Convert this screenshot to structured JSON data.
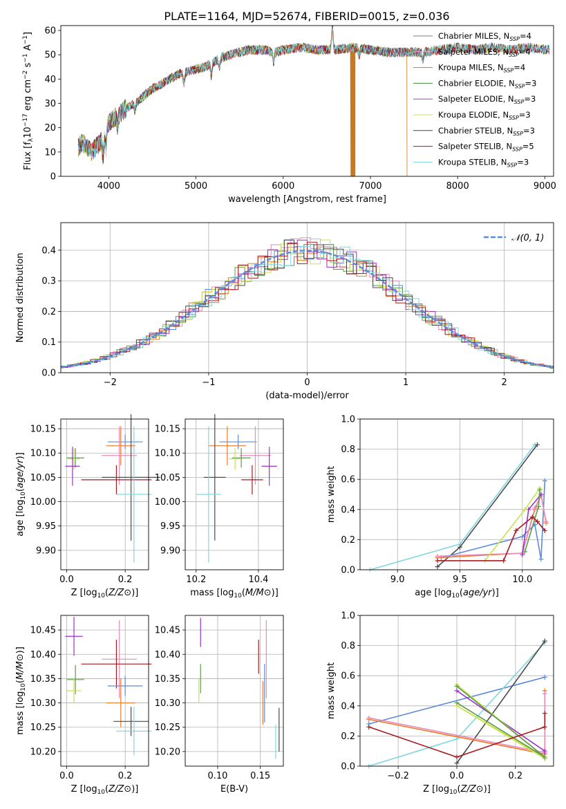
{
  "title": "PLATE=1164, MJD=52674, FIBERID=0015, z=0.036",
  "colors": {
    "Chabrier MILES": "#7b7b7b",
    "Salpeter MILES": "#e8a6cf",
    "Kroupa MILES": "#c8781e",
    "Chabrier ELODIE": "#3c8a3c",
    "Salpeter ELODIE": "#9a3ec8",
    "Kroupa ELODIE": "#d6e35a",
    "Chabrier STELIB": "#444444",
    "Salpeter STELIB": "#a81818",
    "Kroupa STELIB": "#7fd6df",
    "blue": "#5b8ad8",
    "orange": "#ec7a2a",
    "pink": "#e88ab8",
    "green": "#5e9a4a",
    "purple": "#9a30c8",
    "lime": "#c9e24e",
    "dark": "#4a4a4a",
    "red": "#a8191c",
    "cyan": "#7fd6df"
  },
  "chart_data": [
    {
      "id": "spectrum",
      "type": "line",
      "title": "PLATE=1164, MJD=52674, FIBERID=0015, z=0.036",
      "xlabel": "wavelength [Angstrom, rest frame]",
      "ylabel": "Flux [f_λ10^-17 erg cm^-2 s^-1 A^-1]",
      "xlim": [
        3450,
        9100
      ],
      "ylim": [
        0,
        62
      ],
      "xticks": [
        4000,
        5000,
        6000,
        7000,
        8000,
        9000
      ],
      "yticks": [
        0,
        10,
        20,
        30,
        40,
        50,
        60
      ],
      "continuum": {
        "x": [
          3650,
          3700,
          3800,
          3900,
          3950,
          4000,
          4100,
          4200,
          4300,
          4400,
          4500,
          4600,
          4700,
          4800,
          4900,
          5000,
          5100,
          5200,
          5300,
          5400,
          5500,
          5600,
          5700,
          5800,
          5900,
          6000,
          6200,
          6400,
          6600,
          6800,
          7000,
          7200,
          7400,
          7600,
          7800,
          8000,
          8200,
          8400,
          8600,
          8800,
          9050
        ],
        "y": [
          12,
          14,
          10,
          14,
          17,
          22,
          25,
          28,
          30,
          33,
          36,
          38,
          40,
          42,
          43,
          44,
          45,
          47,
          49,
          50,
          51,
          52,
          52,
          52,
          51,
          52,
          53,
          52,
          52,
          53,
          52,
          51,
          51,
          51,
          52,
          53,
          52,
          53,
          52,
          53,
          52
        ]
      },
      "series": [
        {
          "name": "Chabrier MILES",
          "n_ssp": "4"
        },
        {
          "name": "Salpeter MILES",
          "n_ssp": "4"
        },
        {
          "name": "Kroupa MILES",
          "n_ssp": "4"
        },
        {
          "name": "Chabrier ELODIE",
          "n_ssp": "3"
        },
        {
          "name": "Salpeter ELODIE",
          "n_ssp": "3"
        },
        {
          "name": "Kroupa ELODIE",
          "n_ssp": "3"
        },
        {
          "name": "Chabrier STELIB",
          "n_ssp": "3"
        },
        {
          "name": "Salpeter STELIB",
          "n_ssp": "5"
        },
        {
          "name": "Kroupa STELIB",
          "n_ssp": "3"
        }
      ],
      "dropouts": [
        {
          "series": "Kroupa MILES",
          "x": 6800
        },
        {
          "series": "Kroupa MILES",
          "x": 7420
        }
      ]
    },
    {
      "id": "residuals",
      "type": "line",
      "xlabel": "(data-model)/error",
      "ylabel": "Normed distribution",
      "xlim": [
        -2.5,
        2.5
      ],
      "ylim": [
        0,
        0.49
      ],
      "xticks": [
        -2,
        -1,
        0,
        1,
        2
      ],
      "yticks": [
        0.0,
        0.1,
        0.2,
        0.3,
        0.4
      ],
      "gaussian": {
        "label": "𝒩(0, 1)",
        "mean": 0,
        "sigma": 1
      },
      "bin_width": 0.1
    },
    {
      "id": "age-vs-Z",
      "type": "scatter",
      "xlabel": "Z [log10(Z/Z⊙)]",
      "ylabel": "age  [log10(age/yr)]",
      "xlim": [
        -0.02,
        0.28
      ],
      "ylim": [
        9.86,
        10.17
      ],
      "xticks": [
        0.0,
        0.2
      ],
      "yticks": [
        9.9,
        9.95,
        10.0,
        10.05,
        10.1,
        10.15
      ],
      "points": [
        {
          "color": "blue",
          "x": 0.2,
          "y": 10.123,
          "xerr": 0.06,
          "yerr": 0.015
        },
        {
          "color": "orange",
          "x": 0.185,
          "y": 10.115,
          "xerr": 0.05,
          "yerr": 0.04
        },
        {
          "color": "pink",
          "x": 0.18,
          "y": 10.095,
          "xerr": 0.06,
          "yerr": 0.06
        },
        {
          "color": "green",
          "x": 0.03,
          "y": 10.09,
          "xerr": 0.03,
          "yerr": 0.02
        },
        {
          "color": "lime",
          "x": 0.025,
          "y": 10.088,
          "xerr": 0.02,
          "yerr": 0.022
        },
        {
          "color": "purple",
          "x": 0.02,
          "y": 10.073,
          "xerr": 0.025,
          "yerr": 0.04
        },
        {
          "color": "red",
          "x": 0.17,
          "y": 10.045,
          "xerr": 0.12,
          "yerr": 0.03
        },
        {
          "color": "dark",
          "x": 0.22,
          "y": 10.05,
          "xerr": 0.1,
          "yerr": 0.13
        },
        {
          "color": "cyan",
          "x": 0.23,
          "y": 10.015,
          "xerr": 0.06,
          "yerr": 0.14
        }
      ]
    },
    {
      "id": "age-vs-mass",
      "type": "scatter",
      "xlabel": "mass [log10(M/M⊙)]",
      "ylabel": "",
      "xlim": [
        10.165,
        10.48
      ],
      "ylim": [
        9.86,
        10.17
      ],
      "xticks": [
        10.2,
        10.4
      ],
      "yticks": [
        9.9,
        9.95,
        10.0,
        10.05,
        10.1,
        10.15
      ],
      "points": [
        {
          "color": "blue",
          "x": 10.335,
          "y": 10.123,
          "xerr": 0.06,
          "yerr": 0.015
        },
        {
          "color": "orange",
          "x": 10.3,
          "y": 10.115,
          "xerr": 0.06,
          "yerr": 0.04
        },
        {
          "color": "pink",
          "x": 10.39,
          "y": 10.095,
          "xerr": 0.05,
          "yerr": 0.06
        },
        {
          "color": "green",
          "x": 10.345,
          "y": 10.09,
          "xerr": 0.03,
          "yerr": 0.02
        },
        {
          "color": "lime",
          "x": 10.325,
          "y": 10.088,
          "xerr": 0.02,
          "yerr": 0.022
        },
        {
          "color": "purple",
          "x": 10.435,
          "y": 10.073,
          "xerr": 0.025,
          "yerr": 0.04
        },
        {
          "color": "red",
          "x": 10.38,
          "y": 10.045,
          "xerr": 0.035,
          "yerr": 0.03
        },
        {
          "color": "dark",
          "x": 10.26,
          "y": 10.05,
          "xerr": 0.035,
          "yerr": 0.13
        },
        {
          "color": "cyan",
          "x": 10.24,
          "y": 10.015,
          "xerr": 0.04,
          "yerr": 0.14
        }
      ]
    },
    {
      "id": "mass-weight-vs-age",
      "type": "line",
      "xlabel": "age  [log10(age/yr)]",
      "ylabel": "mass weight",
      "xlim": [
        8.7,
        10.25
      ],
      "ylim": [
        0,
        1.0
      ],
      "xticks": [
        9.0,
        9.5,
        10.0
      ],
      "yticks": [
        0.0,
        0.2,
        0.4,
        0.6,
        0.8,
        1.0
      ],
      "series": [
        {
          "color": "cyan",
          "x": [
            8.78,
            9.5,
            10.1
          ],
          "y": [
            0.0,
            0.17,
            0.83
          ]
        },
        {
          "color": "dark",
          "x": [
            9.32,
            9.5,
            10.12
          ],
          "y": [
            0.02,
            0.15,
            0.83
          ]
        },
        {
          "color": "blue",
          "x": [
            9.35,
            10.0,
            10.1,
            10.15,
            10.18
          ],
          "y": [
            0.08,
            0.22,
            0.3,
            0.07,
            0.59
          ]
        },
        {
          "color": "orange",
          "x": [
            9.32,
            10.0,
            10.1,
            10.15,
            10.19
          ],
          "y": [
            0.08,
            0.11,
            0.4,
            0.5,
            0.31
          ]
        },
        {
          "color": "pink",
          "x": [
            9.32,
            10.0,
            10.1,
            10.15,
            10.19
          ],
          "y": [
            0.09,
            0.11,
            0.41,
            0.49,
            0.32
          ]
        },
        {
          "color": "purple",
          "x": [
            10.0,
            10.05,
            10.15
          ],
          "y": [
            0.1,
            0.4,
            0.5
          ]
        },
        {
          "color": "lime",
          "x": [
            9.7,
            10.02,
            10.14
          ],
          "y": [
            0.06,
            0.4,
            0.54
          ]
        },
        {
          "color": "green",
          "x": [
            10.02,
            10.13,
            10.14
          ],
          "y": [
            0.12,
            0.42,
            0.53
          ]
        },
        {
          "color": "red",
          "x": [
            9.32,
            9.85,
            9.95,
            10.08,
            10.12,
            10.18
          ],
          "y": [
            0.06,
            0.06,
            0.26,
            0.35,
            0.32,
            0.26
          ]
        }
      ]
    },
    {
      "id": "mass-vs-Z",
      "type": "scatter",
      "xlabel": "Z [log10(Z/Z⊙)]",
      "ylabel": "mass [log10(M/M⊙)]",
      "xlim": [
        -0.02,
        0.28
      ],
      "ylim": [
        10.17,
        10.48
      ],
      "xticks": [
        0.0,
        0.2
      ],
      "yticks": [
        10.2,
        10.25,
        10.3,
        10.35,
        10.4,
        10.45
      ],
      "points": [
        {
          "color": "purple",
          "x": 0.025,
          "y": 10.437,
          "xerr": 0.03,
          "yerr": 0.04
        },
        {
          "color": "pink",
          "x": 0.18,
          "y": 10.39,
          "xerr": 0.06,
          "yerr": 0.08
        },
        {
          "color": "red",
          "x": 0.17,
          "y": 10.38,
          "xerr": 0.12,
          "yerr": 0.05
        },
        {
          "color": "green",
          "x": 0.03,
          "y": 10.348,
          "xerr": 0.03,
          "yerr": 0.03
        },
        {
          "color": "blue",
          "x": 0.2,
          "y": 10.335,
          "xerr": 0.06,
          "yerr": 0.02
        },
        {
          "color": "lime",
          "x": 0.025,
          "y": 10.325,
          "xerr": 0.025,
          "yerr": 0.025
        },
        {
          "color": "orange",
          "x": 0.185,
          "y": 10.3,
          "xerr": 0.05,
          "yerr": 0.05
        },
        {
          "color": "dark",
          "x": 0.22,
          "y": 10.262,
          "xerr": 0.06,
          "yerr": 0.03
        },
        {
          "color": "cyan",
          "x": 0.23,
          "y": 10.242,
          "xerr": 0.06,
          "yerr": 0.05
        }
      ]
    },
    {
      "id": "mass-vs-EBV",
      "type": "scatter",
      "xlabel": "E(B-V)",
      "ylabel": "",
      "xlim": [
        0.062,
        0.177
      ],
      "ylim": [
        10.17,
        10.48
      ],
      "xticks": [
        0.1,
        0.15
      ],
      "yticks": [
        10.2,
        10.25,
        10.3,
        10.35,
        10.4,
        10.45
      ],
      "points": [
        {
          "color": "purple",
          "x": 0.08,
          "y": 10.445,
          "xerr": 0,
          "yerr": 0.03
        },
        {
          "color": "pink",
          "x": 0.157,
          "y": 10.39,
          "xerr": 0,
          "yerr": 0.08
        },
        {
          "color": "red",
          "x": 0.148,
          "y": 10.395,
          "xerr": 0,
          "yerr": 0.035
        },
        {
          "color": "green",
          "x": 0.08,
          "y": 10.35,
          "xerr": 0,
          "yerr": 0.03
        },
        {
          "color": "lime",
          "x": 0.078,
          "y": 10.325,
          "xerr": 0,
          "yerr": 0.025
        },
        {
          "color": "orange",
          "x": 0.153,
          "y": 10.3,
          "xerr": 0,
          "yerr": 0.045
        },
        {
          "color": "blue",
          "x": 0.155,
          "y": 10.32,
          "xerr": 0,
          "yerr": 0.06
        },
        {
          "color": "dark",
          "x": 0.172,
          "y": 10.245,
          "xerr": 0,
          "yerr": 0.045
        },
        {
          "color": "cyan",
          "x": 0.168,
          "y": 10.22,
          "xerr": 0,
          "yerr": 0.035
        }
      ]
    },
    {
      "id": "mass-weight-vs-Z",
      "type": "line",
      "xlabel": "Z [log10(Z/Z⊙)]",
      "ylabel": "mass weight",
      "xlim": [
        -0.33,
        0.33
      ],
      "ylim": [
        0,
        1.0
      ],
      "xticks": [
        -0.2,
        0.0,
        0.2
      ],
      "yticks": [
        0.0,
        0.2,
        0.4,
        0.6,
        0.8,
        1.0
      ],
      "series": [
        {
          "color": "blue",
          "x": [
            -0.3,
            0.3
          ],
          "y": [
            0.28,
            0.59
          ]
        },
        {
          "color": "cyan",
          "x": [
            -0.3,
            0.0,
            0.3
          ],
          "y": [
            0.0,
            0.18,
            0.82
          ]
        },
        {
          "color": "dark",
          "x": [
            0.0,
            0.3
          ],
          "y": [
            0.02,
            0.83
          ]
        },
        {
          "color": "orange",
          "x": [
            -0.3,
            0.3,
            0.3
          ],
          "y": [
            0.31,
            0.08,
            0.5
          ]
        },
        {
          "color": "pink",
          "x": [
            -0.3,
            0.3,
            0.3
          ],
          "y": [
            0.32,
            0.09,
            0.48
          ]
        },
        {
          "color": "purple",
          "x": [
            0.0,
            0.3,
            0.3
          ],
          "y": [
            0.5,
            0.1,
            0.05
          ]
        },
        {
          "color": "lime",
          "x": [
            0.0,
            0.3,
            0.0,
            0.3
          ],
          "y": [
            0.54,
            0.06,
            0.4,
            0.05
          ]
        },
        {
          "color": "green",
          "x": [
            0.0,
            0.3,
            0.0
          ],
          "y": [
            0.53,
            0.06,
            0.42
          ]
        },
        {
          "color": "red",
          "x": [
            -0.3,
            0.0,
            0.3,
            0.3
          ],
          "y": [
            0.26,
            0.06,
            0.26,
            0.35
          ]
        }
      ]
    }
  ]
}
